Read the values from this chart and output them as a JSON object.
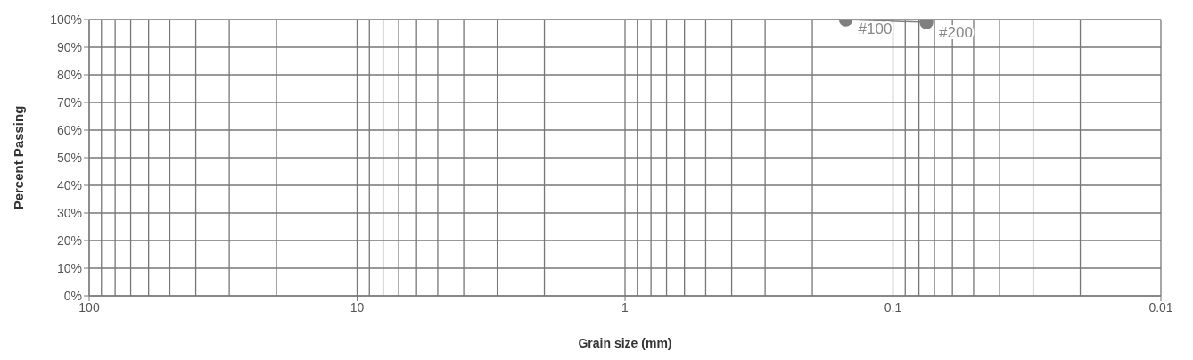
{
  "chart_data": {
    "type": "line",
    "xlabel": "Grain size (mm)",
    "ylabel": "Percent Passing",
    "x": [
      0.15,
      0.075
    ],
    "series": [
      {
        "color": "#7f7f7f",
        "values": [
          100,
          99
        ]
      }
    ],
    "annotations": [
      {
        "text": "#100",
        "x": 0.15,
        "y": 100
      },
      {
        "text": "#200",
        "x": 0.075,
        "y": 99
      }
    ],
    "log": "x",
    "marker": "circle",
    "grid": true,
    "xlim": [
      100,
      0.01
    ],
    "xticks": [
      100,
      10,
      1,
      0.1,
      0.01
    ],
    "ylim": [
      0,
      100
    ],
    "yticks": [
      {
        "value": 0,
        "label": "0%"
      },
      {
        "value": 10,
        "label": "10%"
      },
      {
        "value": 20,
        "label": "20%"
      },
      {
        "value": 30,
        "label": "30%"
      },
      {
        "value": 40,
        "label": "40%"
      },
      {
        "value": 50,
        "label": "50%"
      },
      {
        "value": 60,
        "label": "60%"
      },
      {
        "value": 70,
        "label": "70%"
      },
      {
        "value": 80,
        "label": "80%"
      },
      {
        "value": 90,
        "label": "90%"
      },
      {
        "value": 100,
        "label": "100%"
      }
    ]
  }
}
